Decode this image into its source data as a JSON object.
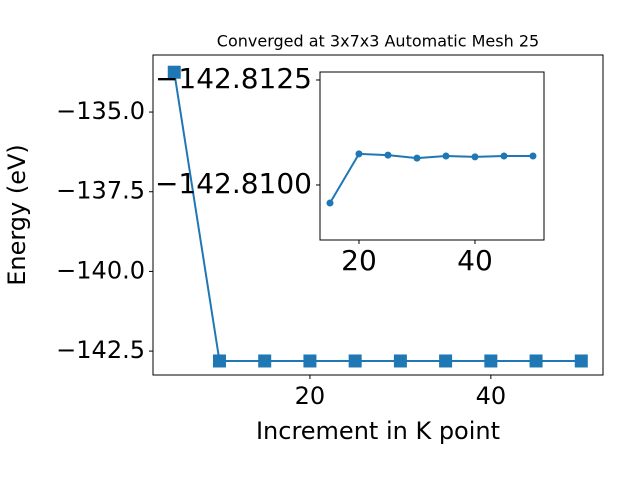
{
  "chart_data": [
    {
      "type": "line",
      "title": "Converged at 3x7x3 Automatic Mesh 25",
      "x_label": "Increment in K point",
      "y_label": "Energy (eV)",
      "x": [
        5,
        10,
        15,
        20,
        25,
        30,
        35,
        40,
        45,
        50
      ],
      "values": [
        -133.75,
        -142.81,
        -142.81,
        -142.81,
        -142.81,
        -142.81,
        -142.81,
        -142.81,
        -142.81,
        -142.81
      ],
      "color": "#1f77b4",
      "marker": "square",
      "xlim": [
        2.65,
        52.4
      ],
      "xticks": [
        20,
        40
      ],
      "ylim": [
        -143.25,
        -133.21
      ],
      "yticks": [
        {
          "value": -135.0,
          "label": "−135.0"
        },
        {
          "value": -137.5,
          "label": "−137.5"
        },
        {
          "value": -140.0,
          "label": "−140.0"
        },
        {
          "value": -142.5,
          "label": "−142.5"
        }
      ]
    },
    {
      "type": "line",
      "x": [
        15,
        20,
        25,
        30,
        35,
        40,
        45,
        50
      ],
      "values": [
        -142.80957,
        -142.81074,
        -142.81071,
        -142.81064,
        -142.81069,
        -142.81067,
        -142.81069,
        -142.81069
      ],
      "color": "#1f77b4",
      "marker": "circle",
      "xlim": [
        13.28,
        51.9
      ],
      "xticks": [
        20,
        40
      ],
      "ylim": [
        -142.80869,
        -142.81269
      ],
      "yticks": [
        {
          "value": -142.8125,
          "label": "−142.8125"
        },
        {
          "value": -142.81,
          "label": "−142.8100"
        }
      ]
    }
  ]
}
